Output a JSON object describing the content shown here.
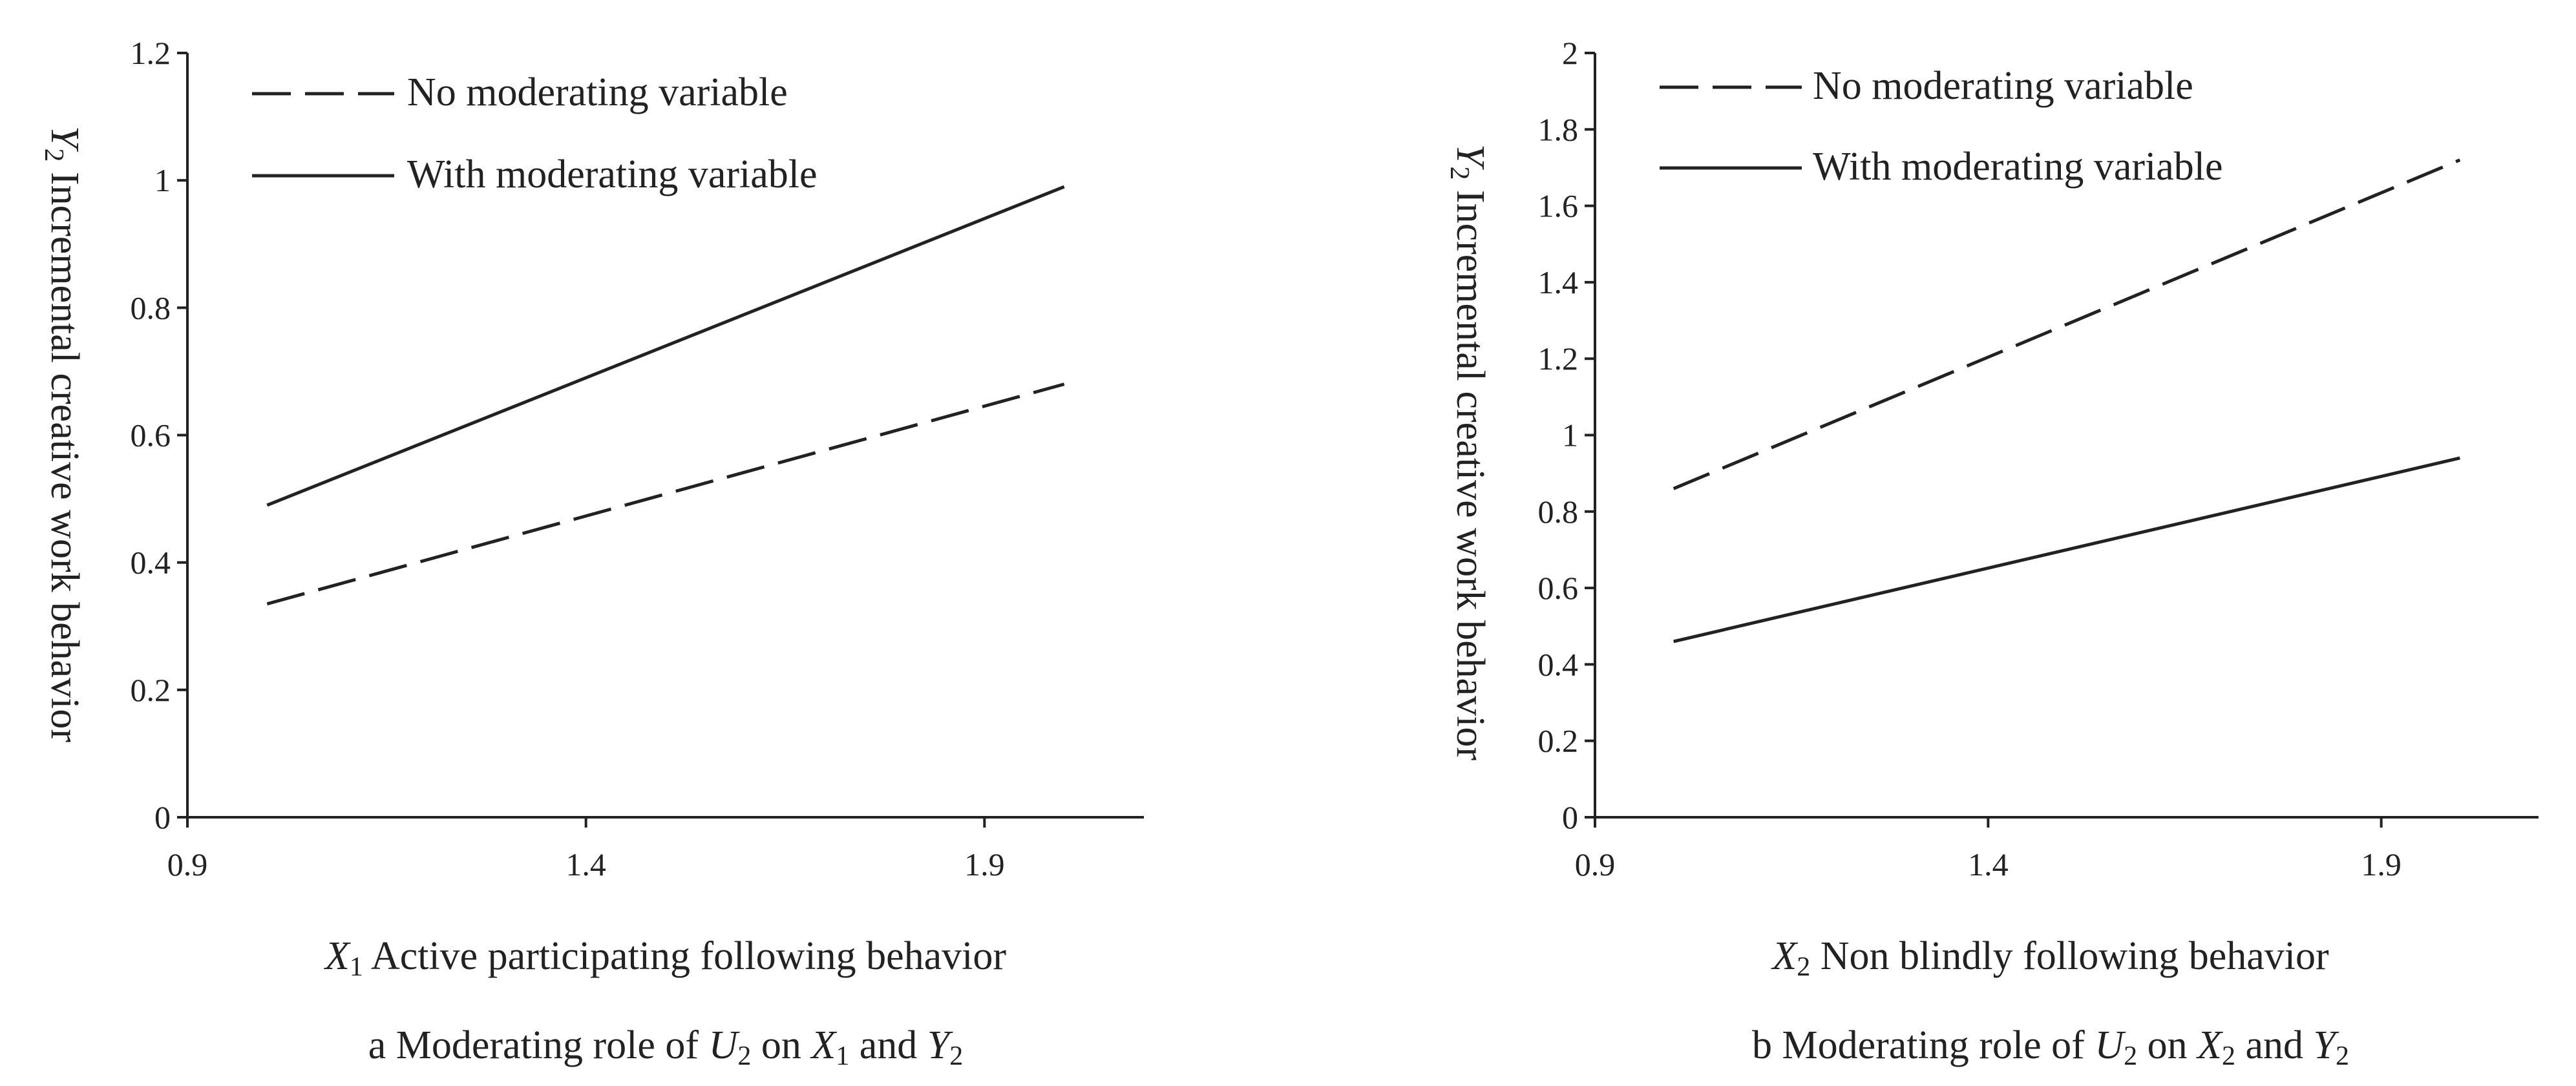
{
  "chart_data": [
    {
      "type": "line",
      "caption": {
        "prefix": "a  Moderating role of ",
        "u": "U",
        "u_sub": "2",
        "mid": " on ",
        "x": "X",
        "x_sub": "1",
        "and": " and ",
        "y": "Y",
        "y_sub": "2"
      },
      "ylabel": {
        "var": "Y",
        "sub": "2",
        "text": " Incremental creative work behavior"
      },
      "xlabel": {
        "var": "X",
        "sub": "1",
        "text": " Active participating following behavior"
      },
      "xlim": [
        0.9,
        2.1
      ],
      "ylim": [
        0,
        1.2
      ],
      "xticks": [
        "0.9",
        "1.4",
        "1.9"
      ],
      "xtick_values": [
        0.9,
        1.4,
        1.9
      ],
      "yticks": [
        "0",
        "0.2",
        "0.4",
        "0.6",
        "0.8",
        "1",
        "1.2"
      ],
      "ytick_values": [
        0,
        0.2,
        0.4,
        0.6,
        0.8,
        1.0,
        1.2
      ],
      "series": [
        {
          "name": "No moderating variable",
          "style": "dashed",
          "x": [
            1,
            2
          ],
          "values": [
            0.335,
            0.68
          ]
        },
        {
          "name": "With moderating variable",
          "style": "solid",
          "x": [
            1,
            2
          ],
          "values": [
            0.49,
            0.99
          ]
        }
      ],
      "legend": "top-left"
    },
    {
      "type": "line",
      "caption": {
        "prefix": "b  Moderating role of ",
        "u": "U",
        "u_sub": "2",
        "mid": " on ",
        "x": "X",
        "x_sub": "2",
        "and": " and ",
        "y": "Y",
        "y_sub": "2"
      },
      "ylabel": {
        "var": "Y",
        "sub": "2",
        "text": " Incremental creative work behavior"
      },
      "xlabel": {
        "var": "X",
        "sub": "2",
        "text": " Non blindly following behavior"
      },
      "xlim": [
        0.9,
        2.1
      ],
      "ylim": [
        0,
        2
      ],
      "xticks": [
        "0.9",
        "1.4",
        "1.9"
      ],
      "xtick_values": [
        0.9,
        1.4,
        1.9
      ],
      "yticks": [
        "0",
        "0.2",
        "0.4",
        "0.6",
        "0.8",
        "1",
        "1.2",
        "1.4",
        "1.6",
        "1.8",
        "2"
      ],
      "ytick_values": [
        0,
        0.2,
        0.4,
        0.6,
        0.8,
        1.0,
        1.2,
        1.4,
        1.6,
        1.8,
        2.0
      ],
      "series": [
        {
          "name": "No moderating variable",
          "style": "dashed",
          "x": [
            1,
            2
          ],
          "values": [
            0.86,
            1.72
          ]
        },
        {
          "name": "With moderating variable",
          "style": "solid",
          "x": [
            1,
            2
          ],
          "values": [
            0.46,
            0.94
          ]
        }
      ],
      "legend": "top-left"
    }
  ]
}
